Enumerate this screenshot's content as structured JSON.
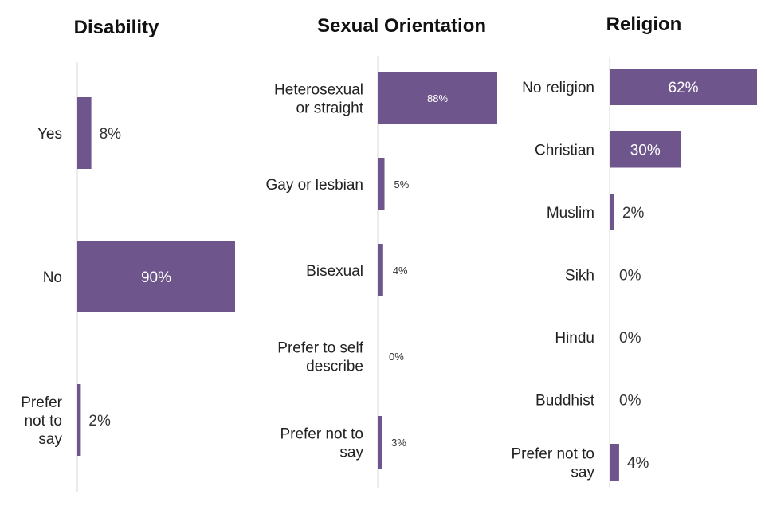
{
  "chart_data": [
    {
      "type": "bar",
      "orientation": "horizontal",
      "title": "Disability",
      "categories": [
        "Yes",
        "No",
        "Prefer not to say"
      ],
      "values": [
        8,
        90,
        2
      ],
      "value_labels": [
        "8%",
        "90%",
        "2%"
      ],
      "xlim": [
        0,
        90
      ],
      "color": "#6e558b"
    },
    {
      "type": "bar",
      "orientation": "horizontal",
      "title": "Sexual Orientation",
      "categories": [
        "Heterosexual or straight",
        "Gay or lesbian",
        "Bisexual",
        "Prefer to self describe",
        "Prefer not to say"
      ],
      "values": [
        88,
        5,
        4,
        0,
        3
      ],
      "value_labels": [
        "88%",
        "5%",
        "4%",
        "0%",
        "3%"
      ],
      "xlim": [
        0,
        88
      ],
      "color": "#6e558b"
    },
    {
      "type": "bar",
      "orientation": "horizontal",
      "title": "Religion",
      "categories": [
        "No religion",
        "Christian",
        "Muslim",
        "Sikh",
        "Hindu",
        "Buddhist",
        "Prefer not to say"
      ],
      "values": [
        62,
        30,
        2,
        0,
        0,
        0,
        4
      ],
      "value_labels": [
        "62%",
        "30%",
        "2%",
        "0%",
        "0%",
        "0%",
        "4%"
      ],
      "xlim": [
        0,
        62
      ],
      "color": "#6e558b"
    }
  ]
}
